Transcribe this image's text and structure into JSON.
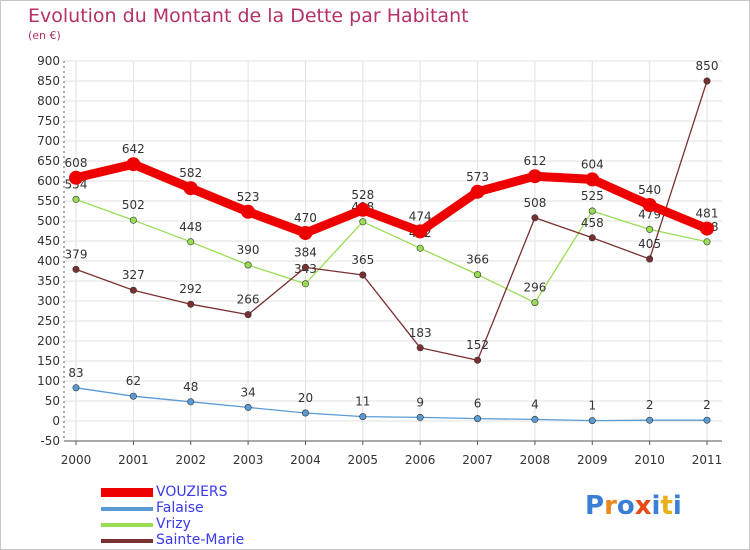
{
  "chart_data": {
    "type": "line",
    "title": "Evolution du Montant de la Dette par Habitant",
    "subtitle": "(en €)",
    "x": [
      "2000",
      "2001",
      "2002",
      "2003",
      "2004",
      "2005",
      "2006",
      "2007",
      "2008",
      "2009",
      "2010",
      "2011"
    ],
    "ylim": [
      -50,
      900
    ],
    "yticks": [
      -50,
      0,
      50,
      100,
      150,
      200,
      250,
      300,
      350,
      400,
      450,
      500,
      550,
      600,
      650,
      700,
      750,
      800,
      850,
      900
    ],
    "grid": true,
    "legend_position": "bottom-left",
    "series": [
      {
        "name": "VOUZIERS",
        "color": "#ee0000",
        "values": [
          608,
          642,
          582,
          523,
          470,
          528,
          474,
          573,
          612,
          604,
          540,
          481
        ],
        "labels": [
          "608",
          "642",
          "582",
          "523",
          "470",
          "528",
          "474",
          "573",
          "612",
          "604",
          "540",
          "481"
        ]
      },
      {
        "name": "Falaise",
        "color": "#5b9bd5",
        "values": [
          83,
          62,
          48,
          34,
          20,
          11,
          9,
          6,
          4,
          1,
          2,
          2
        ],
        "labels": [
          "83",
          "62",
          "48",
          "34",
          "20",
          "11",
          "9",
          "6",
          "4",
          "1",
          "2",
          "2"
        ]
      },
      {
        "name": "Vrizy",
        "color": "#99dd55",
        "values": [
          554,
          502,
          448,
          390,
          343,
          498,
          432,
          366,
          296,
          525,
          479,
          448
        ],
        "labels": [
          "554",
          "502",
          "448",
          "390",
          "343",
          "498",
          "432",
          "366",
          "296",
          "525",
          "479",
          "448"
        ]
      },
      {
        "name": "Sainte-Marie",
        "color": "#7a3030",
        "values": [
          379,
          327,
          292,
          266,
          384,
          365,
          183,
          152,
          508,
          458,
          405,
          850
        ],
        "labels": [
          "379",
          "327",
          "292",
          "266",
          "384",
          "365",
          "183",
          "152",
          "508",
          "458",
          "405",
          "850"
        ]
      }
    ]
  },
  "logo": {
    "text": "Proxiti",
    "colors": [
      "#3a7fd5",
      "#e88a1a",
      "#3a7fd5",
      "#e84a1a",
      "#3a7fd5",
      "#e8b01a",
      "#3a7fd5"
    ]
  }
}
